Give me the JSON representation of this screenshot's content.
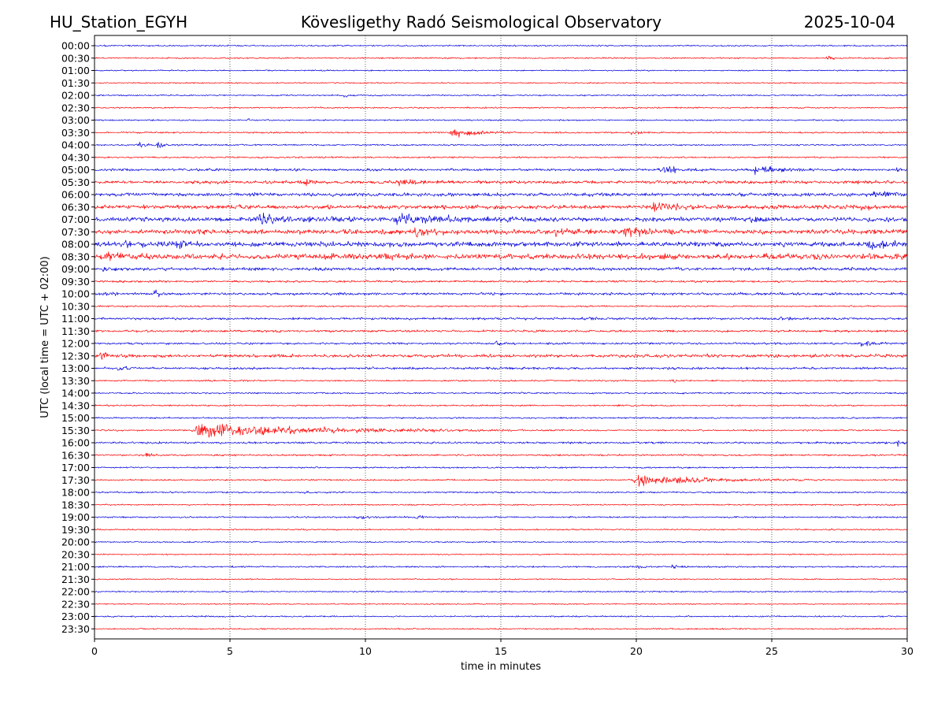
{
  "header": {
    "station": "HU_Station_EGYH",
    "title": "Kövesligethy Radó Seismological Observatory",
    "date": "2025-10-04"
  },
  "chart_data": {
    "type": "line",
    "title": "Kövesligethy Radó Seismological Observatory",
    "xlabel": "time in minutes",
    "ylabel": "UTC (local time = UTC + 02:00)",
    "xlim": [
      0,
      30
    ],
    "xticks": [
      0,
      5,
      10,
      15,
      20,
      25,
      30
    ],
    "grid_x": [
      5,
      10,
      15,
      20,
      25
    ],
    "colors": [
      "#0000dd",
      "#ff0000"
    ],
    "rows": [
      {
        "label": "00:00",
        "noise": 0.9,
        "events": []
      },
      {
        "label": "00:30",
        "noise": 0.9,
        "events": [
          {
            "t": 27.0,
            "amp": 3,
            "dur": 0.3
          }
        ]
      },
      {
        "label": "01:00",
        "noise": 0.8,
        "events": []
      },
      {
        "label": "01:30",
        "noise": 0.8,
        "events": []
      },
      {
        "label": "02:00",
        "noise": 0.9,
        "events": [
          {
            "t": 9.2,
            "amp": 2.5,
            "dur": 0.2
          }
        ]
      },
      {
        "label": "02:30",
        "noise": 0.9,
        "events": []
      },
      {
        "label": "03:00",
        "noise": 0.9,
        "events": [
          {
            "t": 5.6,
            "amp": 2.5,
            "dur": 0.2
          }
        ]
      },
      {
        "label": "03:30",
        "noise": 1.0,
        "events": [
          {
            "t": 13.1,
            "amp": 7,
            "dur": 0.9
          },
          {
            "t": 19.8,
            "amp": 3,
            "dur": 0.3
          }
        ]
      },
      {
        "label": "04:00",
        "noise": 1.0,
        "events": [
          {
            "t": 1.6,
            "amp": 3,
            "dur": 0.6
          },
          {
            "t": 2.3,
            "amp": 5,
            "dur": 0.2
          }
        ]
      },
      {
        "label": "04:30",
        "noise": 1.0,
        "events": []
      },
      {
        "label": "05:00",
        "noise": 1.6,
        "events": [
          {
            "t": 20.8,
            "amp": 5,
            "dur": 0.8
          },
          {
            "t": 24.3,
            "amp": 5,
            "dur": 1.0
          },
          {
            "t": 29.6,
            "amp": 8,
            "dur": 0.1
          }
        ]
      },
      {
        "label": "05:30",
        "noise": 2.0,
        "events": [
          {
            "t": 7.7,
            "amp": 6,
            "dur": 0.3
          },
          {
            "t": 11.2,
            "amp": 4,
            "dur": 0.6
          }
        ]
      },
      {
        "label": "06:00",
        "noise": 2.2,
        "events": [
          {
            "t": 28.6,
            "amp": 4,
            "dur": 1.2
          }
        ]
      },
      {
        "label": "06:30",
        "noise": 2.6,
        "events": [
          {
            "t": 20.5,
            "amp": 5,
            "dur": 1.0
          },
          {
            "t": 28.3,
            "amp": 5,
            "dur": 0.3
          }
        ]
      },
      {
        "label": "07:00",
        "noise": 2.8,
        "events": [
          {
            "t": 6.0,
            "amp": 5,
            "dur": 1.5
          },
          {
            "t": 11.0,
            "amp": 6,
            "dur": 2.5
          },
          {
            "t": 24.2,
            "amp": 5,
            "dur": 0.4
          }
        ]
      },
      {
        "label": "07:30",
        "noise": 3.0,
        "events": [
          {
            "t": 11.8,
            "amp": 6,
            "dur": 0.6
          },
          {
            "t": 17.0,
            "amp": 6,
            "dur": 0.5
          },
          {
            "t": 19.5,
            "amp": 6,
            "dur": 0.7
          }
        ]
      },
      {
        "label": "08:00",
        "noise": 3.2,
        "events": [
          {
            "t": 1.1,
            "amp": 5,
            "dur": 0.4
          },
          {
            "t": 3.0,
            "amp": 5,
            "dur": 0.4
          },
          {
            "t": 28.5,
            "amp": 5,
            "dur": 1.0
          }
        ]
      },
      {
        "label": "08:30",
        "noise": 3.6,
        "events": [
          {
            "t": 0.4,
            "amp": 5,
            "dur": 0.6
          },
          {
            "t": 10.5,
            "amp": 5,
            "dur": 0.5
          },
          {
            "t": 26.5,
            "amp": 4,
            "dur": 0.3
          }
        ]
      },
      {
        "label": "09:00",
        "noise": 2.0,
        "events": [
          {
            "t": 0.3,
            "amp": 4,
            "dur": 0.3
          }
        ]
      },
      {
        "label": "09:30",
        "noise": 1.3,
        "events": []
      },
      {
        "label": "10:00",
        "noise": 1.6,
        "events": [
          {
            "t": 0.3,
            "amp": 4,
            "dur": 0.3
          },
          {
            "t": 2.2,
            "amp": 5,
            "dur": 0.2
          }
        ]
      },
      {
        "label": "10:30",
        "noise": 1.0,
        "events": []
      },
      {
        "label": "11:00",
        "noise": 1.5,
        "events": [
          {
            "t": 17.8,
            "amp": 4,
            "dur": 0.3
          },
          {
            "t": 25.2,
            "amp": 3,
            "dur": 0.3
          }
        ]
      },
      {
        "label": "11:30",
        "noise": 1.4,
        "events": []
      },
      {
        "label": "12:00",
        "noise": 1.3,
        "events": [
          {
            "t": 14.8,
            "amp": 4,
            "dur": 0.3
          },
          {
            "t": 28.2,
            "amp": 4,
            "dur": 0.5
          }
        ]
      },
      {
        "label": "12:30",
        "noise": 2.0,
        "events": [
          {
            "t": 0.2,
            "amp": 5,
            "dur": 0.4
          },
          {
            "t": 22.6,
            "amp": 3,
            "dur": 0.2
          }
        ]
      },
      {
        "label": "13:00",
        "noise": 1.5,
        "events": [
          {
            "t": 0.8,
            "amp": 4,
            "dur": 0.3
          }
        ]
      },
      {
        "label": "13:30",
        "noise": 1.0,
        "events": [
          {
            "t": 21.3,
            "amp": 4,
            "dur": 0.15
          }
        ]
      },
      {
        "label": "14:00",
        "noise": 1.0,
        "events": []
      },
      {
        "label": "14:30",
        "noise": 1.0,
        "events": []
      },
      {
        "label": "15:00",
        "noise": 1.0,
        "events": []
      },
      {
        "label": "15:30",
        "noise": 1.0,
        "events": [
          {
            "t": 3.6,
            "amp": 11,
            "dur": 4.5
          }
        ]
      },
      {
        "label": "16:00",
        "noise": 1.3,
        "events": [
          {
            "t": 29.6,
            "amp": 4,
            "dur": 0.3
          }
        ]
      },
      {
        "label": "16:30",
        "noise": 1.2,
        "events": [
          {
            "t": 1.9,
            "amp": 5,
            "dur": 0.15
          }
        ]
      },
      {
        "label": "17:00",
        "noise": 1.0,
        "events": []
      },
      {
        "label": "17:30",
        "noise": 1.0,
        "events": [
          {
            "t": 19.9,
            "amp": 9,
            "dur": 2.2
          }
        ]
      },
      {
        "label": "18:00",
        "noise": 1.0,
        "events": [
          {
            "t": 7.7,
            "amp": 3,
            "dur": 0.2
          }
        ]
      },
      {
        "label": "18:30",
        "noise": 0.9,
        "events": []
      },
      {
        "label": "19:00",
        "noise": 1.0,
        "events": [
          {
            "t": 9.6,
            "amp": 3,
            "dur": 0.4
          },
          {
            "t": 11.8,
            "amp": 5,
            "dur": 0.2
          }
        ]
      },
      {
        "label": "19:30",
        "noise": 0.9,
        "events": []
      },
      {
        "label": "20:00",
        "noise": 0.8,
        "events": []
      },
      {
        "label": "20:30",
        "noise": 0.8,
        "events": []
      },
      {
        "label": "21:00",
        "noise": 1.0,
        "events": [
          {
            "t": 20.0,
            "amp": 3,
            "dur": 0.2
          },
          {
            "t": 21.3,
            "amp": 3,
            "dur": 0.2
          }
        ]
      },
      {
        "label": "21:30",
        "noise": 0.8,
        "events": []
      },
      {
        "label": "22:00",
        "noise": 0.9,
        "events": []
      },
      {
        "label": "22:30",
        "noise": 0.8,
        "events": []
      },
      {
        "label": "23:00",
        "noise": 0.9,
        "events": []
      },
      {
        "label": "23:30",
        "noise": 0.9,
        "events": []
      }
    ]
  }
}
